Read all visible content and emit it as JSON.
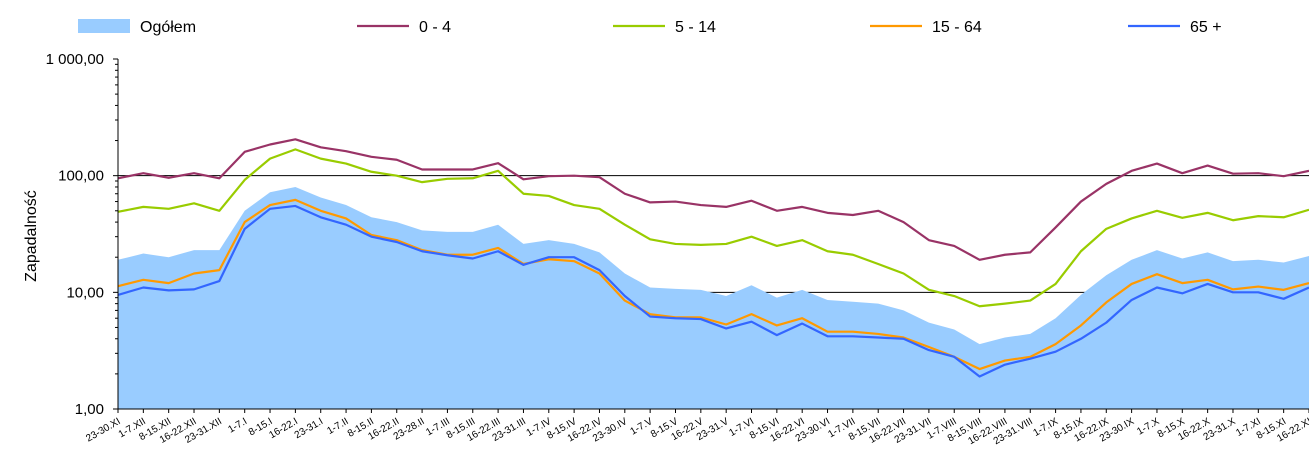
{
  "chart_data": {
    "type": "line",
    "yscale": "log",
    "ylim": [
      1,
      1000
    ],
    "ylabel": "Zapadalność",
    "y_ticks": [
      1,
      10,
      100,
      1000
    ],
    "y_tick_labels": [
      "1,00",
      "10,00",
      "100,00",
      "1 000,00"
    ],
    "gridlines_y": [
      10,
      100
    ],
    "legend_position": "top",
    "categories": [
      "23-30.XI",
      "1-7.XII",
      "8-15.XII",
      "16-22.XII",
      "23-31.XII",
      "1-7.I",
      "8-15.I",
      "16-22.I",
      "23-31.I",
      "1-7.II",
      "8-15.II",
      "16-22.II",
      "23-28.II",
      "1-7.III",
      "8-15.III",
      "16-22.III",
      "23-31.III",
      "1-7.IV",
      "8-15.IV",
      "16-22.IV",
      "23-30.IV",
      "1-7.V",
      "8-15.V",
      "16-22.V",
      "23-31.V",
      "1-7.VI",
      "8-15.VI",
      "16-22.VI",
      "23-30.VI",
      "1-7.VII",
      "8-15.VII",
      "16-22.VII",
      "23-31.VII",
      "1-7.VIII",
      "8-15.VIII",
      "16-22.VIII",
      "23-31.VIII",
      "1-7.IX",
      "8-15.IX",
      "16-22.IX",
      "23-30.IX",
      "1-7.X",
      "8-15.X",
      "16-22.X",
      "23-31.X",
      "1-7.XI",
      "8-15.XI",
      "16-22.XI"
    ],
    "series": [
      {
        "name": "Ogółem",
        "kind": "area",
        "color": "#99ccff",
        "values": [
          19,
          21.5,
          20,
          23,
          23,
          50,
          72,
          80,
          65,
          56,
          44,
          40,
          34,
          33,
          33,
          38,
          26,
          28,
          26,
          22,
          14.5,
          11,
          10.7,
          10.5,
          9.3,
          11.5,
          9,
          10.5,
          8.6,
          8.3,
          8,
          7,
          5.5,
          4.8,
          3.6,
          4.1,
          4.4,
          6,
          9.5,
          14,
          19,
          23,
          19.5,
          22,
          18.5,
          19,
          18,
          20.5
        ]
      },
      {
        "name": "0 - 4",
        "kind": "line",
        "color": "#993366",
        "values": [
          95,
          105,
          96,
          105,
          95,
          160,
          185,
          205,
          175,
          162,
          145,
          137,
          113,
          113,
          113,
          128,
          93,
          99,
          100,
          97,
          70,
          59,
          60,
          56,
          54,
          61,
          50,
          54,
          48,
          46,
          50,
          40,
          28,
          25,
          19,
          21,
          22,
          36,
          60,
          85,
          110,
          127,
          105,
          122,
          104,
          105,
          99,
          110
        ]
      },
      {
        "name": "5 - 14",
        "kind": "line",
        "color": "#99cc00",
        "values": [
          49,
          54,
          52,
          58,
          50,
          92,
          140,
          168,
          140,
          127,
          108,
          100,
          88,
          94,
          95,
          110,
          70,
          67,
          56,
          52,
          38,
          28.5,
          26,
          25.5,
          26,
          30,
          25,
          28,
          22.5,
          21,
          17.5,
          14.5,
          10.5,
          9.3,
          7.6,
          8,
          8.5,
          11.8,
          22.5,
          35,
          43,
          50,
          43.5,
          48,
          41.5,
          45,
          44,
          51
        ]
      },
      {
        "name": "15 - 64",
        "kind": "line",
        "color": "#ff9900",
        "values": [
          11.3,
          12.8,
          12,
          14.5,
          15.5,
          40,
          56,
          62,
          50,
          43,
          31,
          28,
          23,
          21,
          21,
          24,
          17.5,
          19.2,
          18.5,
          14.5,
          8.5,
          6.5,
          6.1,
          6.1,
          5.3,
          6.5,
          5.2,
          6,
          4.6,
          4.6,
          4.4,
          4.1,
          3.4,
          2.8,
          2.2,
          2.6,
          2.8,
          3.6,
          5.2,
          8.2,
          11.8,
          14.3,
          12,
          12.8,
          10.6,
          11.2,
          10.5,
          12
        ]
      },
      {
        "name": "65 +",
        "kind": "line",
        "color": "#3366ff",
        "values": [
          9.5,
          11,
          10.4,
          10.6,
          12.5,
          35,
          52,
          55,
          44,
          38,
          30,
          27,
          22.5,
          20.8,
          19.5,
          22.5,
          17.2,
          20,
          20,
          15.5,
          9.3,
          6.2,
          6,
          5.9,
          4.9,
          5.6,
          4.3,
          5.4,
          4.2,
          4.2,
          4.1,
          4,
          3.2,
          2.8,
          1.9,
          2.4,
          2.7,
          3.1,
          4,
          5.5,
          8.6,
          11,
          9.8,
          11.8,
          10,
          10,
          8.8,
          11
        ]
      }
    ]
  }
}
